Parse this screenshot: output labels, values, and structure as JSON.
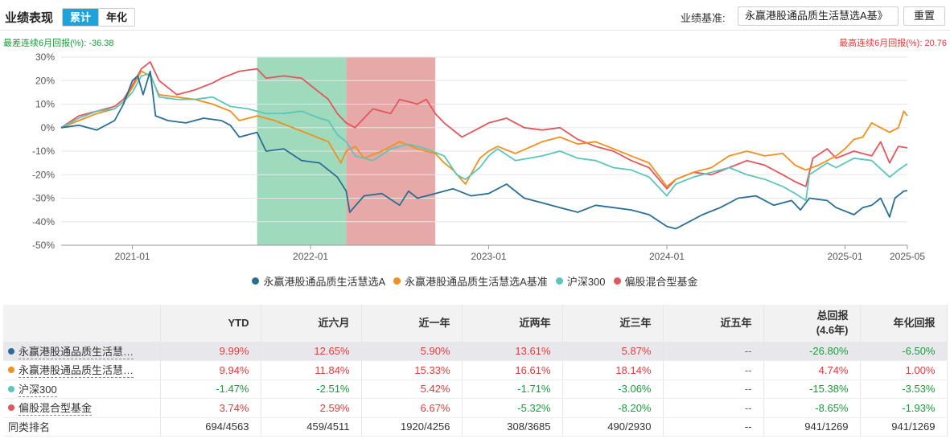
{
  "header": {
    "title": "业绩表现",
    "toggle_cumulative": "累计",
    "toggle_annualized": "年化",
    "benchmark_label": "业绩基准:",
    "benchmark_value": "永赢港股通品质生活慧选A基》",
    "reset_label": "重置"
  },
  "worst_label": "最差连续6月回报(%): -36.38",
  "best_label": "最高连续6月回报(%): 20.76",
  "colors": {
    "fund": "#2b6e94",
    "benchmark": "#f0901e",
    "hs300": "#5cc5bc",
    "category": "#e0575e",
    "best_band": "#8fd4b0",
    "worst_band": "#e39a98"
  },
  "chart_data": {
    "type": "line",
    "ylim": [
      -50,
      30
    ],
    "yticks": [
      30,
      20,
      10,
      0,
      -10,
      -20,
      -30,
      -40,
      -50
    ],
    "ytick_labels": [
      "30%",
      "20%",
      "10%",
      "0%",
      "-10%",
      "-20%",
      "-30%",
      "-40%",
      "-50%"
    ],
    "xlim": [
      2020.6,
      2025.35
    ],
    "xticks": [
      {
        "x": 2021.0,
        "label": "2021-01"
      },
      {
        "x": 2022.0,
        "label": "2022-01"
      },
      {
        "x": 2023.0,
        "label": "2023-01"
      },
      {
        "x": 2024.0,
        "label": "2024-01"
      },
      {
        "x": 2025.0,
        "label": "2025-01"
      },
      {
        "x": 2025.35,
        "label": "2025-05"
      }
    ],
    "bands": [
      {
        "name": "best-6m",
        "x0": 2021.7,
        "x1": 2022.2
      },
      {
        "name": "worst-6m",
        "x0": 2022.2,
        "x1": 2022.7
      }
    ],
    "series": [
      {
        "name": "永赢港股通品质生活慧选A",
        "key": "fund",
        "points": [
          [
            2020.6,
            0
          ],
          [
            2020.7,
            1
          ],
          [
            2020.8,
            -1
          ],
          [
            2020.9,
            3
          ],
          [
            2020.95,
            10
          ],
          [
            2021.0,
            20
          ],
          [
            2021.03,
            22
          ],
          [
            2021.06,
            14
          ],
          [
            2021.1,
            24
          ],
          [
            2021.13,
            5
          ],
          [
            2021.2,
            3
          ],
          [
            2021.3,
            2
          ],
          [
            2021.4,
            4
          ],
          [
            2021.5,
            3
          ],
          [
            2021.55,
            1
          ],
          [
            2021.6,
            -4
          ],
          [
            2021.7,
            -2
          ],
          [
            2021.75,
            -10
          ],
          [
            2021.85,
            -9
          ],
          [
            2021.95,
            -14
          ],
          [
            2022.05,
            -15
          ],
          [
            2022.15,
            -21
          ],
          [
            2022.2,
            -27
          ],
          [
            2022.22,
            -36
          ],
          [
            2022.3,
            -29
          ],
          [
            2022.4,
            -28
          ],
          [
            2022.5,
            -33
          ],
          [
            2022.55,
            -27
          ],
          [
            2022.6,
            -30
          ],
          [
            2022.7,
            -28
          ],
          [
            2022.8,
            -26
          ],
          [
            2022.9,
            -29
          ],
          [
            2023.0,
            -28
          ],
          [
            2023.1,
            -24
          ],
          [
            2023.2,
            -30
          ],
          [
            2023.3,
            -32
          ],
          [
            2023.4,
            -34
          ],
          [
            2023.5,
            -36
          ],
          [
            2023.6,
            -33
          ],
          [
            2023.7,
            -34
          ],
          [
            2023.8,
            -35
          ],
          [
            2023.9,
            -37
          ],
          [
            2024.0,
            -42
          ],
          [
            2024.05,
            -43
          ],
          [
            2024.1,
            -41
          ],
          [
            2024.2,
            -37
          ],
          [
            2024.3,
            -34
          ],
          [
            2024.4,
            -30
          ],
          [
            2024.5,
            -29
          ],
          [
            2024.6,
            -33
          ],
          [
            2024.7,
            -31
          ],
          [
            2024.75,
            -35
          ],
          [
            2024.8,
            -30
          ],
          [
            2024.9,
            -31
          ],
          [
            2024.95,
            -34
          ],
          [
            2025.05,
            -37
          ],
          [
            2025.1,
            -34
          ],
          [
            2025.15,
            -33
          ],
          [
            2025.2,
            -30
          ],
          [
            2025.25,
            -38
          ],
          [
            2025.28,
            -30
          ],
          [
            2025.33,
            -27
          ],
          [
            2025.35,
            -26.8
          ]
        ]
      },
      {
        "name": "永赢港股通品质生活慧选A基准",
        "key": "benchmark",
        "points": [
          [
            2020.6,
            0
          ],
          [
            2020.7,
            3
          ],
          [
            2020.8,
            6
          ],
          [
            2020.9,
            8
          ],
          [
            2020.95,
            11
          ],
          [
            2021.0,
            17
          ],
          [
            2021.05,
            24
          ],
          [
            2021.1,
            22
          ],
          [
            2021.15,
            14
          ],
          [
            2021.25,
            13
          ],
          [
            2021.35,
            12
          ],
          [
            2021.45,
            10
          ],
          [
            2021.55,
            7
          ],
          [
            2021.6,
            3
          ],
          [
            2021.7,
            5
          ],
          [
            2021.8,
            3
          ],
          [
            2021.9,
            0
          ],
          [
            2022.0,
            -3
          ],
          [
            2022.1,
            -6
          ],
          [
            2022.17,
            -15
          ],
          [
            2022.2,
            -10
          ],
          [
            2022.25,
            -8
          ],
          [
            2022.3,
            -13
          ],
          [
            2022.4,
            -10
          ],
          [
            2022.5,
            -6
          ],
          [
            2022.6,
            -9
          ],
          [
            2022.7,
            -11
          ],
          [
            2022.75,
            -15
          ],
          [
            2022.8,
            -18
          ],
          [
            2022.87,
            -24
          ],
          [
            2022.95,
            -13
          ],
          [
            2023.0,
            -10
          ],
          [
            2023.05,
            -8
          ],
          [
            2023.15,
            -11
          ],
          [
            2023.3,
            -6
          ],
          [
            2023.4,
            -4
          ],
          [
            2023.5,
            -7
          ],
          [
            2023.6,
            -6
          ],
          [
            2023.7,
            -9
          ],
          [
            2023.8,
            -12
          ],
          [
            2023.9,
            -15
          ],
          [
            2024.0,
            -25
          ],
          [
            2024.05,
            -22
          ],
          [
            2024.15,
            -19
          ],
          [
            2024.25,
            -17
          ],
          [
            2024.35,
            -12
          ],
          [
            2024.45,
            -10
          ],
          [
            2024.55,
            -12
          ],
          [
            2024.65,
            -11
          ],
          [
            2024.72,
            -16
          ],
          [
            2024.78,
            -18
          ],
          [
            2024.85,
            -16
          ],
          [
            2024.95,
            -12
          ],
          [
            2025.0,
            -9
          ],
          [
            2025.05,
            -5
          ],
          [
            2025.1,
            -4
          ],
          [
            2025.15,
            2
          ],
          [
            2025.2,
            0
          ],
          [
            2025.25,
            -2
          ],
          [
            2025.3,
            0
          ],
          [
            2025.33,
            7
          ],
          [
            2025.35,
            5
          ]
        ]
      },
      {
        "name": "沪深300",
        "key": "hs300",
        "points": [
          [
            2020.6,
            0
          ],
          [
            2020.7,
            4
          ],
          [
            2020.8,
            7
          ],
          [
            2020.9,
            8
          ],
          [
            2020.95,
            11
          ],
          [
            2021.0,
            15
          ],
          [
            2021.05,
            22
          ],
          [
            2021.1,
            23
          ],
          [
            2021.15,
            13
          ],
          [
            2021.25,
            12
          ],
          [
            2021.35,
            12
          ],
          [
            2021.45,
            13
          ],
          [
            2021.55,
            9
          ],
          [
            2021.65,
            8
          ],
          [
            2021.75,
            6
          ],
          [
            2021.85,
            6
          ],
          [
            2021.95,
            7
          ],
          [
            2022.05,
            4
          ],
          [
            2022.1,
            3
          ],
          [
            2022.15,
            -3
          ],
          [
            2022.2,
            -6
          ],
          [
            2022.25,
            -12
          ],
          [
            2022.35,
            -14
          ],
          [
            2022.45,
            -9
          ],
          [
            2022.55,
            -7
          ],
          [
            2022.65,
            -9
          ],
          [
            2022.75,
            -12
          ],
          [
            2022.82,
            -20
          ],
          [
            2022.87,
            -22
          ],
          [
            2022.95,
            -17
          ],
          [
            2023.0,
            -12
          ],
          [
            2023.05,
            -9
          ],
          [
            2023.15,
            -14
          ],
          [
            2023.3,
            -12
          ],
          [
            2023.4,
            -10
          ],
          [
            2023.5,
            -13
          ],
          [
            2023.6,
            -14
          ],
          [
            2023.7,
            -17
          ],
          [
            2023.8,
            -18
          ],
          [
            2023.9,
            -21
          ],
          [
            2024.0,
            -29
          ],
          [
            2024.05,
            -24
          ],
          [
            2024.15,
            -21
          ],
          [
            2024.25,
            -19
          ],
          [
            2024.35,
            -17
          ],
          [
            2024.45,
            -20
          ],
          [
            2024.55,
            -22
          ],
          [
            2024.65,
            -25
          ],
          [
            2024.72,
            -28
          ],
          [
            2024.78,
            -31
          ],
          [
            2024.8,
            -20
          ],
          [
            2024.9,
            -15
          ],
          [
            2024.95,
            -17
          ],
          [
            2025.05,
            -13
          ],
          [
            2025.15,
            -14
          ],
          [
            2025.25,
            -21
          ],
          [
            2025.3,
            -18
          ],
          [
            2025.35,
            -15.4
          ]
        ]
      },
      {
        "name": "偏股混合型基金",
        "key": "category",
        "points": [
          [
            2020.6,
            0
          ],
          [
            2020.7,
            5
          ],
          [
            2020.8,
            7
          ],
          [
            2020.9,
            9
          ],
          [
            2020.95,
            12
          ],
          [
            2021.0,
            18
          ],
          [
            2021.05,
            25
          ],
          [
            2021.1,
            28
          ],
          [
            2021.15,
            20
          ],
          [
            2021.25,
            14
          ],
          [
            2021.35,
            16
          ],
          [
            2021.45,
            19
          ],
          [
            2021.5,
            21
          ],
          [
            2021.6,
            24
          ],
          [
            2021.7,
            25
          ],
          [
            2021.75,
            21
          ],
          [
            2021.85,
            22
          ],
          [
            2021.95,
            21
          ],
          [
            2022.05,
            15
          ],
          [
            2022.1,
            12
          ],
          [
            2022.15,
            6
          ],
          [
            2022.2,
            2
          ],
          [
            2022.25,
            0
          ],
          [
            2022.35,
            8
          ],
          [
            2022.45,
            6
          ],
          [
            2022.5,
            12
          ],
          [
            2022.6,
            10
          ],
          [
            2022.65,
            12
          ],
          [
            2022.7,
            6
          ],
          [
            2022.75,
            2
          ],
          [
            2022.85,
            -4
          ],
          [
            2022.95,
            0
          ],
          [
            2023.0,
            2
          ],
          [
            2023.1,
            4
          ],
          [
            2023.2,
            0
          ],
          [
            2023.3,
            -1
          ],
          [
            2023.4,
            0
          ],
          [
            2023.5,
            -5
          ],
          [
            2023.6,
            -8
          ],
          [
            2023.7,
            -10
          ],
          [
            2023.8,
            -14
          ],
          [
            2023.9,
            -17
          ],
          [
            2024.0,
            -26
          ],
          [
            2024.05,
            -22
          ],
          [
            2024.15,
            -19
          ],
          [
            2024.25,
            -20
          ],
          [
            2024.35,
            -17
          ],
          [
            2024.45,
            -14
          ],
          [
            2024.55,
            -16
          ],
          [
            2024.65,
            -20
          ],
          [
            2024.72,
            -23
          ],
          [
            2024.78,
            -25
          ],
          [
            2024.82,
            -13
          ],
          [
            2024.9,
            -9
          ],
          [
            2024.95,
            -13
          ],
          [
            2025.05,
            -10
          ],
          [
            2025.15,
            -12
          ],
          [
            2025.2,
            -6
          ],
          [
            2025.25,
            -15
          ],
          [
            2025.3,
            -8
          ],
          [
            2025.35,
            -8.6
          ]
        ]
      }
    ]
  },
  "table": {
    "headers": [
      "",
      "YTD",
      "近六月",
      "近一年",
      "近两年",
      "近三年",
      "近五年",
      "总回报(4.6年)",
      "年化回报"
    ],
    "header_total_line1": "总回报",
    "header_total_line2": "(4.6年)",
    "rows": [
      {
        "name": "永赢港股通品质生活慧选A",
        "display": "永赢港股通品质生活慧…",
        "key": "fund",
        "values": [
          "9.99%",
          "12.65%",
          "5.90%",
          "13.61%",
          "5.87%",
          "--",
          "-26.80%",
          "-6.50%"
        ]
      },
      {
        "name": "永赢港股通品质生活慧选A基准",
        "display": "永赢港股通品质生活慧…",
        "key": "benchmark",
        "values": [
          "9.94%",
          "11.84%",
          "15.33%",
          "16.61%",
          "18.14%",
          "--",
          "4.74%",
          "1.00%"
        ]
      },
      {
        "name": "沪深300",
        "display": "沪深300",
        "key": "hs300",
        "values": [
          "-1.47%",
          "-2.51%",
          "5.42%",
          "-1.71%",
          "-3.06%",
          "--",
          "-15.38%",
          "-3.53%"
        ]
      },
      {
        "name": "偏股混合型基金",
        "display": "偏股混合型基金",
        "key": "category",
        "values": [
          "3.74%",
          "2.59%",
          "6.67%",
          "-5.32%",
          "-8.20%",
          "--",
          "-8.65%",
          "-1.93%"
        ]
      }
    ],
    "rank_label": "同类排名",
    "rank_values": [
      "694/4563",
      "459/4511",
      "1920/4256",
      "308/3685",
      "490/2930",
      "--",
      "941/1269",
      "941/1269"
    ]
  }
}
